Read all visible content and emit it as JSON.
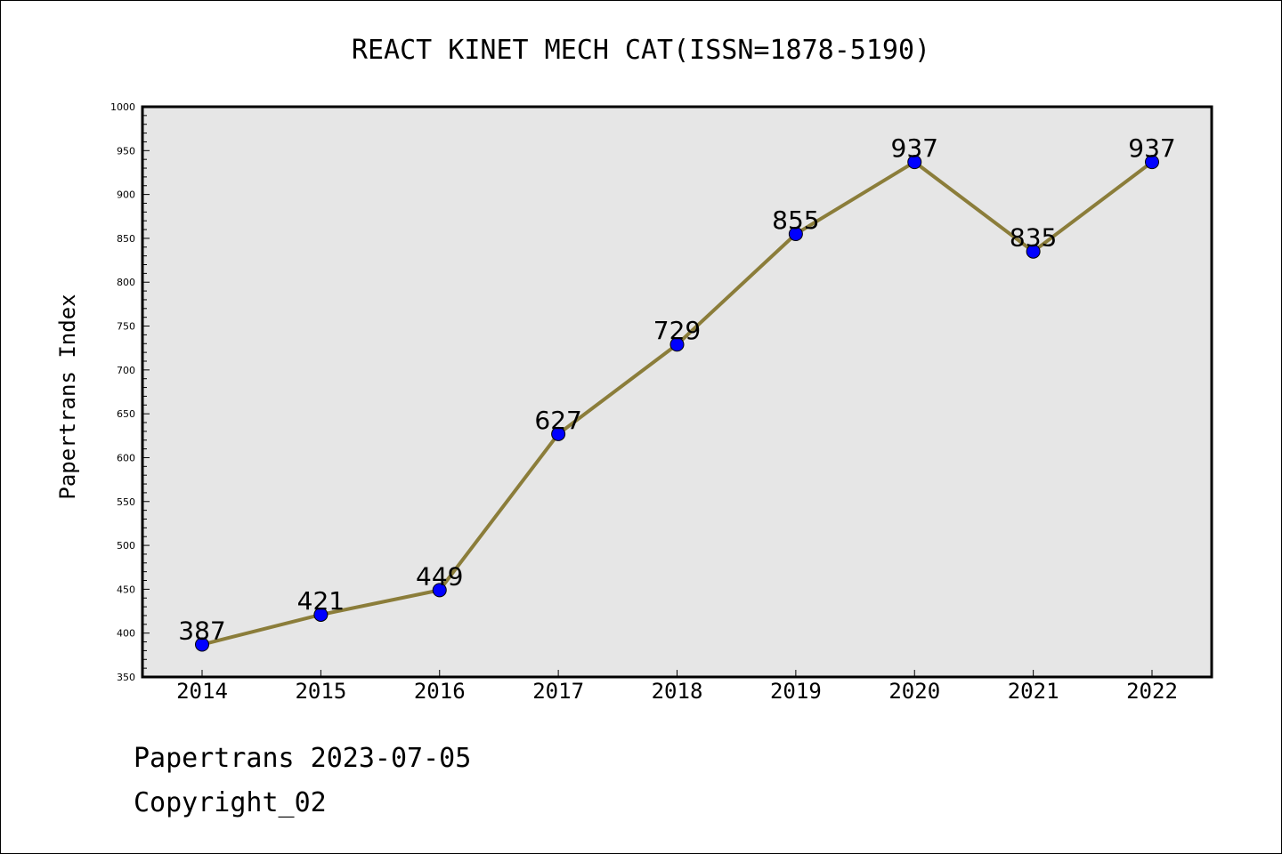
{
  "chart_data": {
    "type": "line",
    "title": "REACT KINET MECH CAT(ISSN=1878-5190)",
    "xlabel": "",
    "ylabel": "Papertrans Index",
    "categories": [
      "2014",
      "2015",
      "2016",
      "2017",
      "2018",
      "2019",
      "2020",
      "2021",
      "2022"
    ],
    "series": [
      {
        "values": [
          387,
          421,
          449,
          627,
          729,
          855,
          937,
          835,
          937
        ]
      }
    ],
    "data_labels": [
      "387",
      "421",
      "449",
      "627",
      "729",
      "855",
      "937",
      "835",
      "937"
    ],
    "ylim": [
      350,
      1000
    ],
    "yticks": [
      "350",
      "400",
      "450",
      "500",
      "550",
      "600",
      "650",
      "700",
      "750",
      "800",
      "850",
      "900",
      "950",
      "1000"
    ],
    "grid": false,
    "legend": "none",
    "colors": {
      "line": "#8b7d3a",
      "marker": "#0000ff",
      "plot_bg": "#e6e6e6"
    }
  },
  "footer": {
    "line1": "Papertrans 2023-07-05",
    "line2": "Copyright_02"
  }
}
